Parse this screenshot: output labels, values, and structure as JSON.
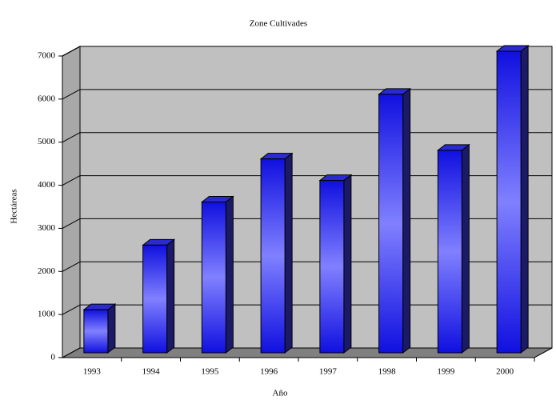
{
  "chart_data": {
    "type": "bar",
    "title": "Zone Cultivades",
    "x_label": "Año",
    "y_label": "Hectáreas",
    "categories": [
      "1993",
      "1994",
      "1995",
      "1996",
      "1997",
      "1998",
      "1999",
      "2000"
    ],
    "values": [
      1000,
      2500,
      3500,
      4500,
      4000,
      6000,
      4700,
      7000
    ],
    "color": "#3333ff",
    "ylim": [
      0,
      7000
    ],
    "yticks": [
      0,
      1000,
      2000,
      3000,
      4000,
      5000,
      6000,
      7000
    ],
    "grid": true
  }
}
